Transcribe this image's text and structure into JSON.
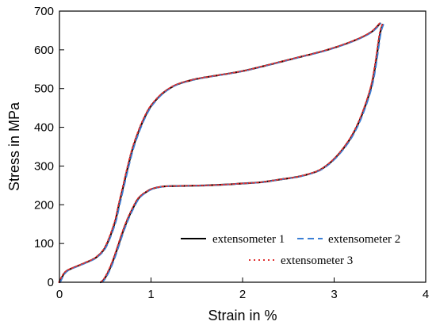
{
  "chart_data": {
    "type": "line",
    "xlabel": "Strain in %",
    "ylabel": "Stress in MPa",
    "xlim": [
      0,
      4
    ],
    "ylim": [
      0,
      700
    ],
    "xticks": [
      "0",
      "1",
      "2",
      "3",
      "4"
    ],
    "yticks": [
      "0",
      "100",
      "200",
      "300",
      "400",
      "500",
      "600",
      "700"
    ],
    "grid": false,
    "legend_position": "bottom-right",
    "loading_curve": {
      "x": [
        0,
        0.05,
        0.1,
        0.2,
        0.3,
        0.4,
        0.5,
        0.6,
        0.65,
        0.7,
        0.75,
        0.8,
        0.85,
        0.9,
        0.95,
        1.0,
        1.1,
        1.2,
        1.3,
        1.5,
        1.7,
        2.0,
        2.3,
        2.6,
        2.9,
        3.2,
        3.4,
        3.5
      ],
      "y": [
        0,
        22,
        32,
        42,
        52,
        64,
        90,
        150,
        200,
        250,
        300,
        345,
        380,
        410,
        435,
        455,
        482,
        500,
        512,
        525,
        533,
        545,
        562,
        580,
        598,
        622,
        645,
        668
      ]
    },
    "unloading_curve": {
      "x": [
        3.53,
        3.5,
        3.45,
        3.4,
        3.3,
        3.2,
        3.1,
        3.0,
        2.9,
        2.8,
        2.6,
        2.4,
        2.2,
        2.0,
        1.8,
        1.6,
        1.4,
        1.2,
        1.1,
        1.0,
        0.9,
        0.85,
        0.8,
        0.75,
        0.7,
        0.65,
        0.6,
        0.55,
        0.5,
        0.47,
        0.45
      ],
      "y": [
        665,
        640,
        560,
        500,
        430,
        380,
        345,
        318,
        298,
        285,
        272,
        265,
        258,
        255,
        252,
        250,
        249,
        248,
        246,
        240,
        225,
        212,
        190,
        165,
        135,
        100,
        65,
        35,
        12,
        3,
        0
      ]
    },
    "series": [
      {
        "name": "extensometer 1",
        "color": "#000000",
        "dash": "solid"
      },
      {
        "name": "extensometer 2",
        "color": "#3a7fd5",
        "dash": "dashed"
      },
      {
        "name": "extensometer 3",
        "color": "#e03030",
        "dash": "dotted"
      }
    ]
  }
}
